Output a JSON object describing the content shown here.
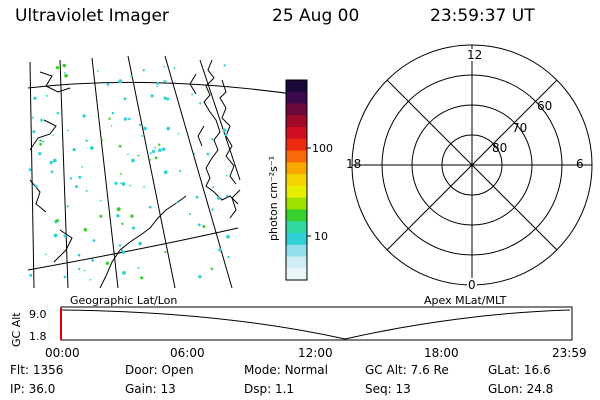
{
  "header": {
    "title": "Ultraviolet Imager",
    "date": "25 Aug 00",
    "time": "23:59:37 UT"
  },
  "colorbar": {
    "label": "photon cm⁻²s⁻¹",
    "ticks": [
      "100",
      "10"
    ],
    "colors": [
      "#1a0a3a",
      "#3c0a4a",
      "#6b0a3a",
      "#a00a28",
      "#d01020",
      "#ee2a10",
      "#f76a08",
      "#faa800",
      "#f4d400",
      "#e4f000",
      "#9ee000",
      "#38d02a",
      "#30d8a0",
      "#30d0d8",
      "#90e0ec",
      "#cfeef4",
      "#eaf6f8"
    ]
  },
  "map": {
    "label": "Geographic Lat/Lon",
    "aurora_color": "#30d0d8"
  },
  "polar": {
    "label": "Apex MLat/MLT",
    "mlt_labels": {
      "top": "12",
      "left": "18",
      "right": "6",
      "bottom": "0"
    },
    "lat_labels": [
      "60",
      "70",
      "80"
    ]
  },
  "timeline": {
    "ylabel": "GC Alt",
    "yticks": [
      "9.0",
      "1.8"
    ],
    "xticks": [
      "00:00",
      "06:00",
      "12:00",
      "18:00",
      "23:59"
    ]
  },
  "info": {
    "row1": [
      {
        "key": "Flt:",
        "value": "1356"
      },
      {
        "key": "Door:",
        "value": "Open"
      },
      {
        "key": "Mode:",
        "value": "Normal"
      },
      {
        "key": "GC Alt:",
        "value": "7.6 Re"
      },
      {
        "key": "GLat:",
        "value": "16.6"
      }
    ],
    "row2": [
      {
        "key": "IP:",
        "value": "36.0"
      },
      {
        "key": "Gain:",
        "value": "13"
      },
      {
        "key": "Dsp:",
        "value": "1.1"
      },
      {
        "key": "Seq:",
        "value": "13"
      },
      {
        "key": "GLon:",
        "value": "24.8"
      }
    ]
  }
}
